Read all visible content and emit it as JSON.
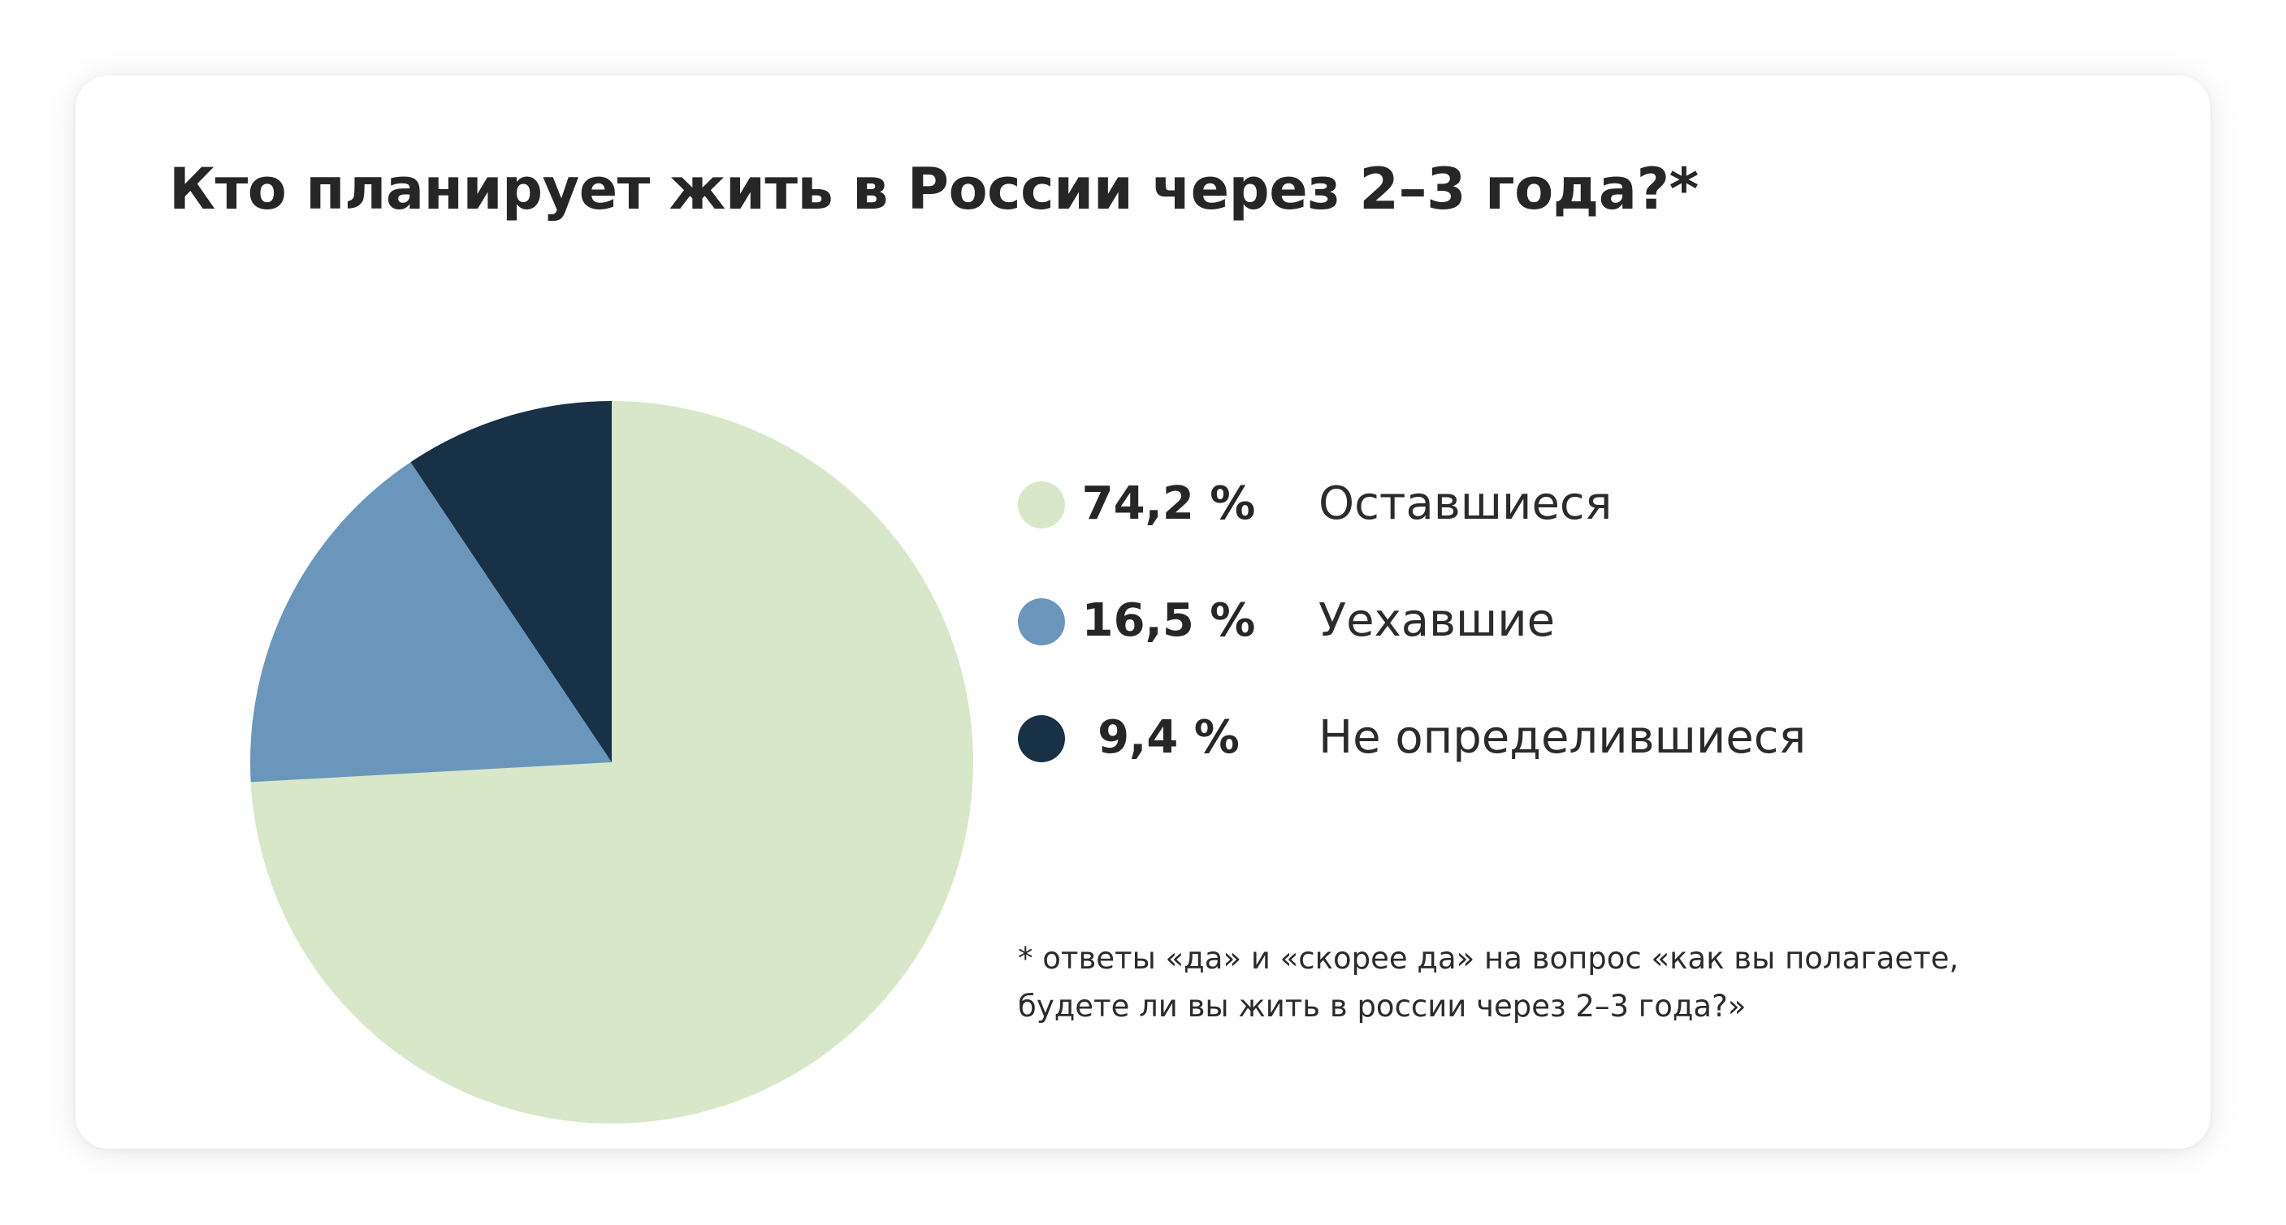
{
  "card": {
    "title": "Кто планирует жить в России через 2–3 года?*",
    "footnote_line1": "* ответы «да» и «скорее да» на вопрос «как вы полагаете,",
    "footnote_line2": "будете ли вы жить в россии через 2–3 года?»"
  },
  "chart_data": {
    "type": "pie",
    "title": "Кто планирует жить в России через 2–3 года?*",
    "slices": [
      {
        "label": "Оставшиеся",
        "value": 74.2,
        "value_label": "74,2 %",
        "color": "#d8e7c7"
      },
      {
        "label": "Уехавшие",
        "value": 16.5,
        "value_label": "16,5 %",
        "color": "#6b96bb"
      },
      {
        "label": "Не определившиеся",
        "value": 9.4,
        "value_label": "9,4 %",
        "color": "#183146"
      }
    ],
    "start": "12 o'clock",
    "direction": "clockwise",
    "legend_position": "right",
    "note": "* ответы «да» и «скорее да» на вопрос «как вы полагаете, будете ли вы жить в россии через 2–3 года?»"
  }
}
